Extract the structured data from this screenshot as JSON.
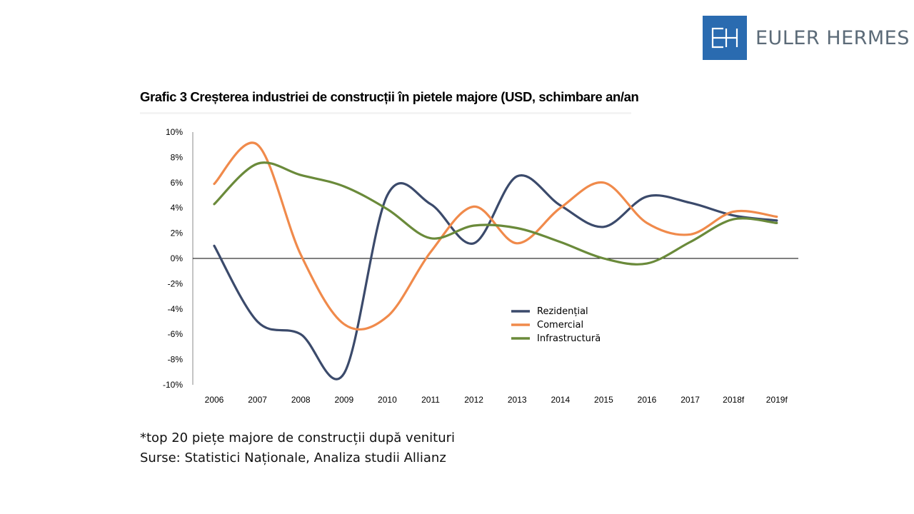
{
  "logo": {
    "monogram": "EH",
    "brand": "EULER HERMES",
    "color": "#2a6bb0"
  },
  "title": "Grafic 3 Creșterea industriei de construcții în pietele majore (USD, schimbare an/an",
  "footnotes": [
    "*top 20 piețe majore de construcții după venituri",
    "Surse: Statistici Naționale, Analiza studii Allianz"
  ],
  "chart_data": {
    "type": "line",
    "title": "Grafic 3 Creșterea industriei de construcții în pietele majore (USD, schimbare an/an",
    "xlabel": "",
    "ylabel": "",
    "categories": [
      "2006",
      "2007",
      "2008",
      "2009",
      "2010",
      "2011",
      "2012",
      "2013",
      "2014",
      "2015",
      "2016",
      "2017",
      "2018f",
      "2019f"
    ],
    "ylim": [
      -10,
      10
    ],
    "yticks": [
      10,
      8,
      6,
      4,
      2,
      0,
      -2,
      -4,
      -6,
      -8,
      -10
    ],
    "ytick_labels": [
      "10%",
      "8%",
      "6%",
      "4%",
      "2%",
      "0%",
      "-2%",
      "-4%",
      "-6%",
      "-8%",
      "-10%"
    ],
    "grid": false,
    "smooth": true,
    "legend_position": "center-right inside plot",
    "series": [
      {
        "name": "Rezidențial",
        "color": "#3b4a6b",
        "values": [
          1.0,
          -5.0,
          -6.0,
          -9.1,
          5.0,
          4.3,
          1.2,
          6.5,
          4.2,
          2.5,
          4.9,
          4.4,
          3.4,
          3.0
        ]
      },
      {
        "name": "Comercial",
        "color": "#f08a4b",
        "values": [
          5.9,
          9.0,
          0.3,
          -5.2,
          -4.6,
          0.5,
          4.1,
          1.2,
          4.0,
          6.0,
          2.8,
          1.9,
          3.7,
          3.3
        ]
      },
      {
        "name": "Infrastructură",
        "color": "#6a8a3a",
        "values": [
          4.3,
          7.5,
          6.6,
          5.7,
          3.9,
          1.6,
          2.6,
          2.4,
          1.3,
          0.0,
          -0.4,
          1.3,
          3.1,
          2.8
        ]
      }
    ]
  }
}
